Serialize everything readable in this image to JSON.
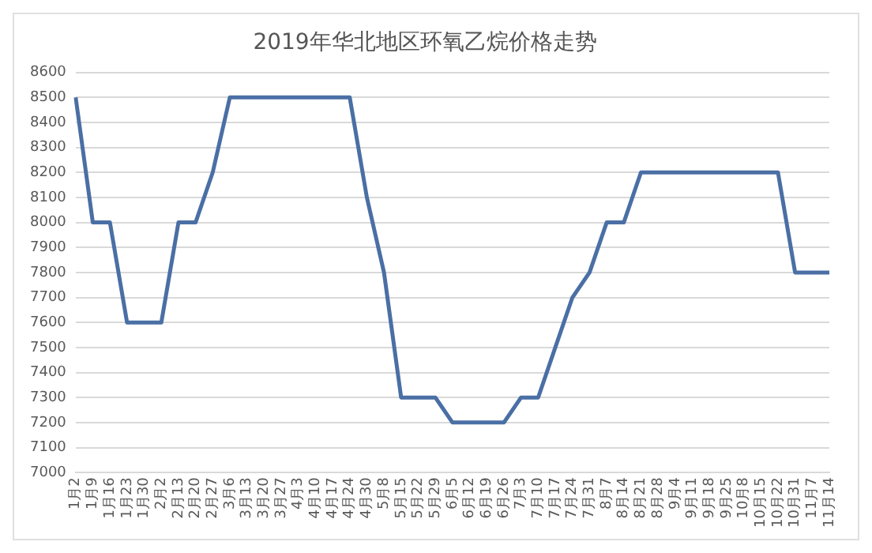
{
  "chart_data": {
    "type": "line",
    "title": "2019年华北地区环氧乙烷价格走势",
    "categories": [
      "1月2",
      "1月9",
      "1月16",
      "1月23",
      "1月30",
      "2月2",
      "2月13",
      "2月20",
      "2月27",
      "3月6",
      "3月13",
      "3月20",
      "3月27",
      "4月3",
      "4月10",
      "4月17",
      "4月24",
      "4月30",
      "5月8",
      "5月15",
      "5月22",
      "5月29",
      "6月5",
      "6月12",
      "6月19",
      "6月26",
      "7月3",
      "7月10",
      "7月17",
      "7月24",
      "7月31",
      "8月7",
      "8月14",
      "8月21",
      "8月28",
      "9月4",
      "9月11",
      "9月18",
      "9月25",
      "10月8",
      "10月15",
      "10月22",
      "10月31",
      "11月7",
      "11月14"
    ],
    "series": [
      {
        "color": "#4a6fa5",
        "values": [
          8500,
          8000,
          8000,
          7600,
          7600,
          7600,
          8000,
          8000,
          8200,
          8500,
          8500,
          8500,
          8500,
          8500,
          8500,
          8500,
          8500,
          8100,
          7800,
          7300,
          7300,
          7300,
          7200,
          7200,
          7200,
          7200,
          7300,
          7300,
          7500,
          7700,
          7800,
          8000,
          8000,
          8200,
          8200,
          8200,
          8200,
          8200,
          8200,
          8200,
          8200,
          8200,
          7800,
          7800,
          7800
        ]
      }
    ],
    "ylim": [
      7000,
      8600
    ],
    "yticks": [
      7000,
      7100,
      7200,
      7300,
      7400,
      7500,
      7600,
      7700,
      7800,
      7900,
      8000,
      8100,
      8200,
      8300,
      8400,
      8500,
      8600
    ],
    "grid": "y",
    "legend": false,
    "marker": "none",
    "line_style": "solid"
  }
}
